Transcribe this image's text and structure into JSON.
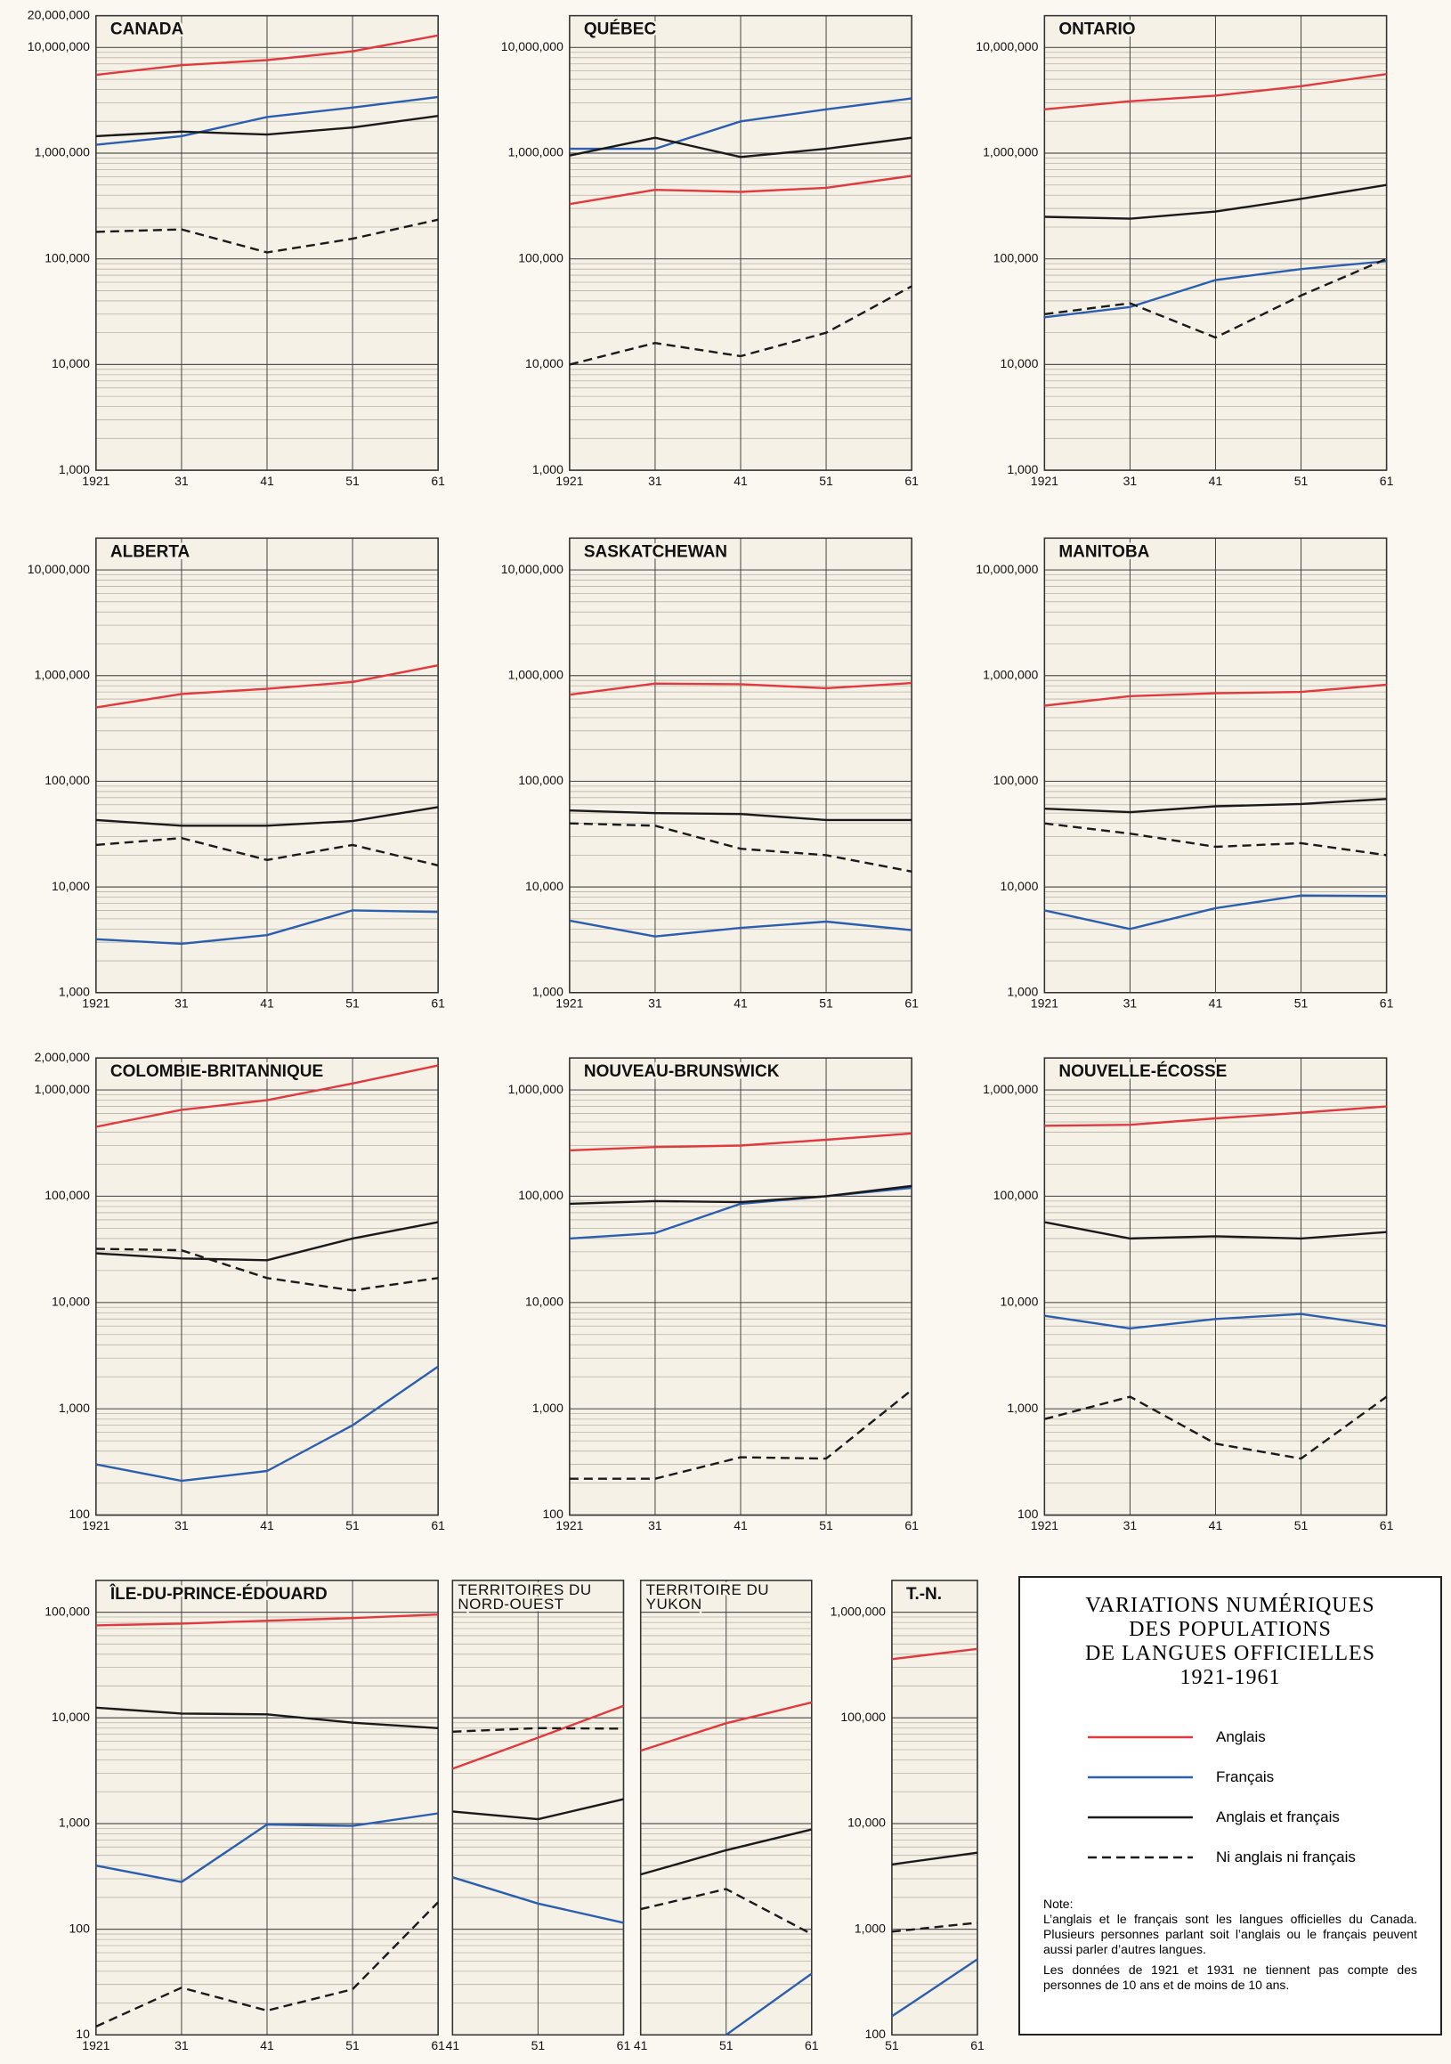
{
  "title": [
    "VARIATIONS NUMÉRIQUES",
    "DES POPULATIONS",
    "DE LANGUES OFFICIELLES",
    "1921-1961"
  ],
  "note": {
    "heading": "Note:",
    "paragraphs": [
      "L’anglais et le français sont les langues officielles du Canada. Plusieurs personnes parlant soit l’anglais ou le français peuvent aussi parler d’autres langues.",
      "Les données de 1921 et 1931 ne tiennent pas compte des personnes de 10 ans et de moins de 10 ans."
    ]
  },
  "chart_data": [
    {
      "type": "line",
      "title": "CANADA",
      "log_scale": true,
      "categories": [
        "1921",
        "31",
        "41",
        "51",
        "61"
      ],
      "ylim": [
        1000,
        20000000
      ],
      "yticks": [
        {
          "value": 1000,
          "label": "1,000"
        },
        {
          "value": 10000,
          "label": "10,000"
        },
        {
          "value": 100000,
          "label": "100,000"
        },
        {
          "value": 1000000,
          "label": "1,000,000"
        },
        {
          "value": 10000000,
          "label": "10,000,000"
        },
        {
          "value": 20000000,
          "label": "20,000,000"
        }
      ],
      "series": [
        {
          "name": "Anglais",
          "color": "#e03a3e",
          "values": [
            5500000,
            6800000,
            7600000,
            9200000,
            13000000
          ]
        },
        {
          "name": "Français",
          "color": "#2b5fae",
          "values": [
            1200000,
            1450000,
            2200000,
            2700000,
            3400000
          ]
        },
        {
          "name": "Anglais et français",
          "color": "#1a1a1a",
          "values": [
            1450000,
            1600000,
            1500000,
            1750000,
            2250000
          ]
        },
        {
          "name": "Ni anglais ni français",
          "color": "#1a1a1a",
          "dash": true,
          "values": [
            180000,
            190000,
            115000,
            155000,
            235000
          ]
        }
      ]
    },
    {
      "type": "line",
      "title": "QUÉBEC",
      "log_scale": true,
      "categories": [
        "1921",
        "31",
        "41",
        "51",
        "61"
      ],
      "ylim": [
        1000,
        20000000
      ],
      "yticks": [
        {
          "value": 1000,
          "label": "1,000"
        },
        {
          "value": 10000,
          "label": "10,000"
        },
        {
          "value": 100000,
          "label": "100,000"
        },
        {
          "value": 1000000,
          "label": "1,000,000"
        },
        {
          "value": 10000000,
          "label": "10,000,000"
        }
      ],
      "series": [
        {
          "name": "Anglais",
          "color": "#e03a3e",
          "values": [
            330000,
            450000,
            430000,
            470000,
            610000
          ]
        },
        {
          "name": "Français",
          "color": "#2b5fae",
          "values": [
            1100000,
            1100000,
            2000000,
            2600000,
            3300000
          ]
        },
        {
          "name": "Anglais et français",
          "color": "#1a1a1a",
          "values": [
            950000,
            1400000,
            920000,
            1100000,
            1400000
          ]
        },
        {
          "name": "Ni anglais ni français",
          "color": "#1a1a1a",
          "dash": true,
          "values": [
            10000,
            16000,
            12000,
            20000,
            55000
          ]
        }
      ]
    },
    {
      "type": "line",
      "title": "ONTARIO",
      "log_scale": true,
      "categories": [
        "1921",
        "31",
        "41",
        "51",
        "61"
      ],
      "ylim": [
        1000,
        20000000
      ],
      "yticks": [
        {
          "value": 1000,
          "label": "1,000"
        },
        {
          "value": 10000,
          "label": "10,000"
        },
        {
          "value": 100000,
          "label": "100,000"
        },
        {
          "value": 1000000,
          "label": "1,000,000"
        },
        {
          "value": 10000000,
          "label": "10,000,000"
        }
      ],
      "series": [
        {
          "name": "Anglais",
          "color": "#e03a3e",
          "values": [
            2600000,
            3100000,
            3500000,
            4300000,
            5600000
          ]
        },
        {
          "name": "Français",
          "color": "#2b5fae",
          "values": [
            28000,
            35000,
            63000,
            80000,
            95000
          ]
        },
        {
          "name": "Anglais et français",
          "color": "#1a1a1a",
          "values": [
            250000,
            240000,
            280000,
            370000,
            500000
          ]
        },
        {
          "name": "Ni anglais ni français",
          "color": "#1a1a1a",
          "dash": true,
          "values": [
            30000,
            38000,
            18000,
            45000,
            100000
          ]
        }
      ]
    },
    {
      "type": "line",
      "title": "ALBERTA",
      "log_scale": true,
      "categories": [
        "1921",
        "31",
        "41",
        "51",
        "61"
      ],
      "ylim": [
        1000,
        20000000
      ],
      "yticks": [
        {
          "value": 1000,
          "label": "1,000"
        },
        {
          "value": 10000,
          "label": "10,000"
        },
        {
          "value": 100000,
          "label": "100,000"
        },
        {
          "value": 1000000,
          "label": "1,000,000"
        },
        {
          "value": 10000000,
          "label": "10,000,000"
        }
      ],
      "series": [
        {
          "name": "Anglais",
          "color": "#e03a3e",
          "values": [
            500000,
            670000,
            750000,
            870000,
            1250000
          ]
        },
        {
          "name": "Français",
          "color": "#2b5fae",
          "values": [
            3200,
            2900,
            3500,
            6000,
            5800
          ]
        },
        {
          "name": "Anglais et français",
          "color": "#1a1a1a",
          "values": [
            43000,
            38000,
            38000,
            42000,
            57000
          ]
        },
        {
          "name": "Ni anglais ni français",
          "color": "#1a1a1a",
          "dash": true,
          "values": [
            25000,
            29000,
            18000,
            25000,
            16000
          ]
        }
      ]
    },
    {
      "type": "line",
      "title": "SASKATCHEWAN",
      "log_scale": true,
      "categories": [
        "1921",
        "31",
        "41",
        "51",
        "61"
      ],
      "ylim": [
        1000,
        20000000
      ],
      "yticks": [
        {
          "value": 1000,
          "label": "1,000"
        },
        {
          "value": 10000,
          "label": "10,000"
        },
        {
          "value": 100000,
          "label": "100,000"
        },
        {
          "value": 1000000,
          "label": "1,000,000"
        },
        {
          "value": 10000000,
          "label": "10,000,000"
        }
      ],
      "series": [
        {
          "name": "Anglais",
          "color": "#e03a3e",
          "values": [
            660000,
            840000,
            830000,
            760000,
            850000
          ]
        },
        {
          "name": "Français",
          "color": "#2b5fae",
          "values": [
            4800,
            3400,
            4100,
            4700,
            3900
          ]
        },
        {
          "name": "Anglais et français",
          "color": "#1a1a1a",
          "values": [
            53000,
            50000,
            49000,
            43000,
            43000
          ]
        },
        {
          "name": "Ni anglais ni français",
          "color": "#1a1a1a",
          "dash": true,
          "values": [
            40000,
            38000,
            23000,
            20000,
            14000
          ]
        }
      ]
    },
    {
      "type": "line",
      "title": "MANITOBA",
      "log_scale": true,
      "categories": [
        "1921",
        "31",
        "41",
        "51",
        "61"
      ],
      "ylim": [
        1000,
        20000000
      ],
      "yticks": [
        {
          "value": 1000,
          "label": "1,000"
        },
        {
          "value": 10000,
          "label": "10,000"
        },
        {
          "value": 100000,
          "label": "100,000"
        },
        {
          "value": 1000000,
          "label": "1,000,000"
        },
        {
          "value": 10000000,
          "label": "10,000,000"
        }
      ],
      "series": [
        {
          "name": "Anglais",
          "color": "#e03a3e",
          "values": [
            520000,
            640000,
            680000,
            700000,
            820000
          ]
        },
        {
          "name": "Français",
          "color": "#2b5fae",
          "values": [
            6000,
            4000,
            6300,
            8300,
            8200
          ]
        },
        {
          "name": "Anglais et français",
          "color": "#1a1a1a",
          "values": [
            55000,
            51000,
            58000,
            61000,
            68000
          ]
        },
        {
          "name": "Ni anglais ni français",
          "color": "#1a1a1a",
          "dash": true,
          "values": [
            40000,
            32000,
            24000,
            26000,
            20000
          ]
        }
      ]
    },
    {
      "type": "line",
      "title": "COLOMBIE-BRITANNIQUE",
      "log_scale": true,
      "categories": [
        "1921",
        "31",
        "41",
        "51",
        "61"
      ],
      "ylim": [
        100,
        2000000
      ],
      "yticks": [
        100,
        {
          "value": 1000,
          "label": "1,000"
        },
        {
          "value": 10000,
          "label": "10,000"
        },
        {
          "value": 100000,
          "label": "100,000"
        },
        {
          "value": 1000000,
          "label": "1,000,000"
        },
        {
          "value": 2000000,
          "label": "2,000,000"
        }
      ],
      "series": [
        {
          "name": "Anglais",
          "color": "#e03a3e",
          "values": [
            450000,
            650000,
            800000,
            1150000,
            1700000
          ]
        },
        {
          "name": "Français",
          "color": "#2b5fae",
          "values": [
            300,
            210,
            260,
            700,
            2500
          ]
        },
        {
          "name": "Anglais et français",
          "color": "#1a1a1a",
          "values": [
            29000,
            26000,
            25000,
            40000,
            57000
          ]
        },
        {
          "name": "Ni anglais ni français",
          "color": "#1a1a1a",
          "dash": true,
          "values": [
            32000,
            31000,
            17000,
            13000,
            17000
          ]
        }
      ]
    },
    {
      "type": "line",
      "title": "NOUVEAU-BRUNSWICK",
      "log_scale": true,
      "categories": [
        "1921",
        "31",
        "41",
        "51",
        "61"
      ],
      "ylim": [
        100,
        2000000
      ],
      "yticks": [
        100,
        {
          "value": 1000,
          "label": "1,000"
        },
        {
          "value": 10000,
          "label": "10,000"
        },
        {
          "value": 100000,
          "label": "100,000"
        },
        {
          "value": 1000000,
          "label": "1,000,000"
        }
      ],
      "series": [
        {
          "name": "Anglais",
          "color": "#e03a3e",
          "values": [
            270000,
            290000,
            300000,
            340000,
            390000
          ]
        },
        {
          "name": "Français",
          "color": "#2b5fae",
          "values": [
            40000,
            45000,
            85000,
            100000,
            120000
          ]
        },
        {
          "name": "Anglais et français",
          "color": "#1a1a1a",
          "values": [
            85000,
            90000,
            88000,
            100000,
            125000
          ]
        },
        {
          "name": "Ni anglais ni français",
          "color": "#1a1a1a",
          "dash": true,
          "values": [
            220,
            220,
            350,
            340,
            1500
          ]
        }
      ]
    },
    {
      "type": "line",
      "title": "NOUVELLE-ÉCOSSE",
      "log_scale": true,
      "categories": [
        "1921",
        "31",
        "41",
        "51",
        "61"
      ],
      "ylim": [
        100,
        2000000
      ],
      "yticks": [
        100,
        {
          "value": 1000,
          "label": "1,000"
        },
        {
          "value": 10000,
          "label": "10,000"
        },
        {
          "value": 100000,
          "label": "100,000"
        },
        {
          "value": 1000000,
          "label": "1,000,000"
        }
      ],
      "series": [
        {
          "name": "Anglais",
          "color": "#e03a3e",
          "values": [
            460000,
            470000,
            540000,
            610000,
            700000
          ]
        },
        {
          "name": "Français",
          "color": "#2b5fae",
          "values": [
            7500,
            5700,
            7000,
            7800,
            6000
          ]
        },
        {
          "name": "Anglais et français",
          "color": "#1a1a1a",
          "values": [
            57000,
            40000,
            42000,
            40000,
            46000
          ]
        },
        {
          "name": "Ni anglais ni français",
          "color": "#1a1a1a",
          "dash": true,
          "values": [
            800,
            1300,
            470,
            340,
            1300
          ]
        }
      ]
    },
    {
      "type": "line",
      "title": "ÎLE-DU-PRINCE-ÉDOUARD",
      "log_scale": true,
      "categories": [
        "1921",
        "31",
        "41",
        "51",
        "61"
      ],
      "ylim": [
        10,
        200000
      ],
      "yticks": [
        10,
        100,
        {
          "value": 1000,
          "label": "1,000"
        },
        {
          "value": 10000,
          "label": "10,000"
        },
        {
          "value": 100000,
          "label": "100,000"
        }
      ],
      "series": [
        {
          "name": "Anglais",
          "color": "#e03a3e",
          "values": [
            75000,
            78000,
            83000,
            88000,
            95000
          ]
        },
        {
          "name": "Français",
          "color": "#2b5fae",
          "values": [
            400,
            280,
            980,
            950,
            1250
          ]
        },
        {
          "name": "Anglais et français",
          "color": "#1a1a1a",
          "values": [
            12500,
            11000,
            10800,
            9000,
            8000
          ]
        },
        {
          "name": "Ni anglais ni français",
          "color": "#1a1a1a",
          "dash": true,
          "values": [
            12,
            28,
            17,
            27,
            180
          ]
        }
      ]
    },
    {
      "type": "line",
      "title": [
        "TERRITOIRES DU",
        "NORD-OUEST"
      ],
      "log_scale": true,
      "categories": [
        "41",
        "51",
        "61"
      ],
      "ylim": [
        10,
        200000
      ],
      "series": [
        {
          "name": "Anglais",
          "color": "#e03a3e",
          "values": [
            3300,
            6500,
            13000
          ]
        },
        {
          "name": "Français",
          "color": "#2b5fae",
          "values": [
            310,
            175,
            115
          ]
        },
        {
          "name": "Anglais et français",
          "color": "#1a1a1a",
          "values": [
            1300,
            1100,
            1700
          ]
        },
        {
          "name": "Ni anglais ni français",
          "color": "#1a1a1a",
          "dash": true,
          "values": [
            7400,
            8000,
            7900
          ]
        }
      ]
    },
    {
      "type": "line",
      "title": [
        "TERRITOIRE DU",
        "YUKON"
      ],
      "log_scale": true,
      "categories": [
        "41",
        "51",
        "61"
      ],
      "ylim": [
        10,
        200000
      ],
      "series": [
        {
          "name": "Anglais",
          "color": "#e03a3e",
          "values": [
            4900,
            8900,
            14000
          ]
        },
        {
          "name": "Français",
          "color": "#2b5fae",
          "values": [
            null,
            10,
            38
          ]
        },
        {
          "name": "Anglais et français",
          "color": "#1a1a1a",
          "values": [
            330,
            560,
            880
          ]
        },
        {
          "name": "Ni anglais ni français",
          "color": "#1a1a1a",
          "dash": true,
          "values": [
            155,
            240,
            90
          ]
        }
      ]
    },
    {
      "type": "line",
      "title": "T.-N.",
      "log_scale": true,
      "categories": [
        "51",
        "61"
      ],
      "ylim": [
        100,
        2000000
      ],
      "yticks": [
        100,
        {
          "value": 1000,
          "label": "1,000"
        },
        {
          "value": 10000,
          "label": "10,000"
        },
        {
          "value": 100000,
          "label": "100,000"
        },
        {
          "value": 1000000,
          "label": "1,000,000"
        }
      ],
      "series": [
        {
          "name": "Anglais",
          "color": "#e03a3e",
          "values": [
            360000,
            450000
          ]
        },
        {
          "name": "Français",
          "color": "#2b5fae",
          "values": [
            150,
            520
          ]
        },
        {
          "name": "Anglais et français",
          "color": "#1a1a1a",
          "values": [
            4100,
            5300
          ]
        },
        {
          "name": "Ni anglais ni français",
          "color": "#1a1a1a",
          "dash": true,
          "values": [
            950,
            1150
          ]
        }
      ]
    }
  ]
}
